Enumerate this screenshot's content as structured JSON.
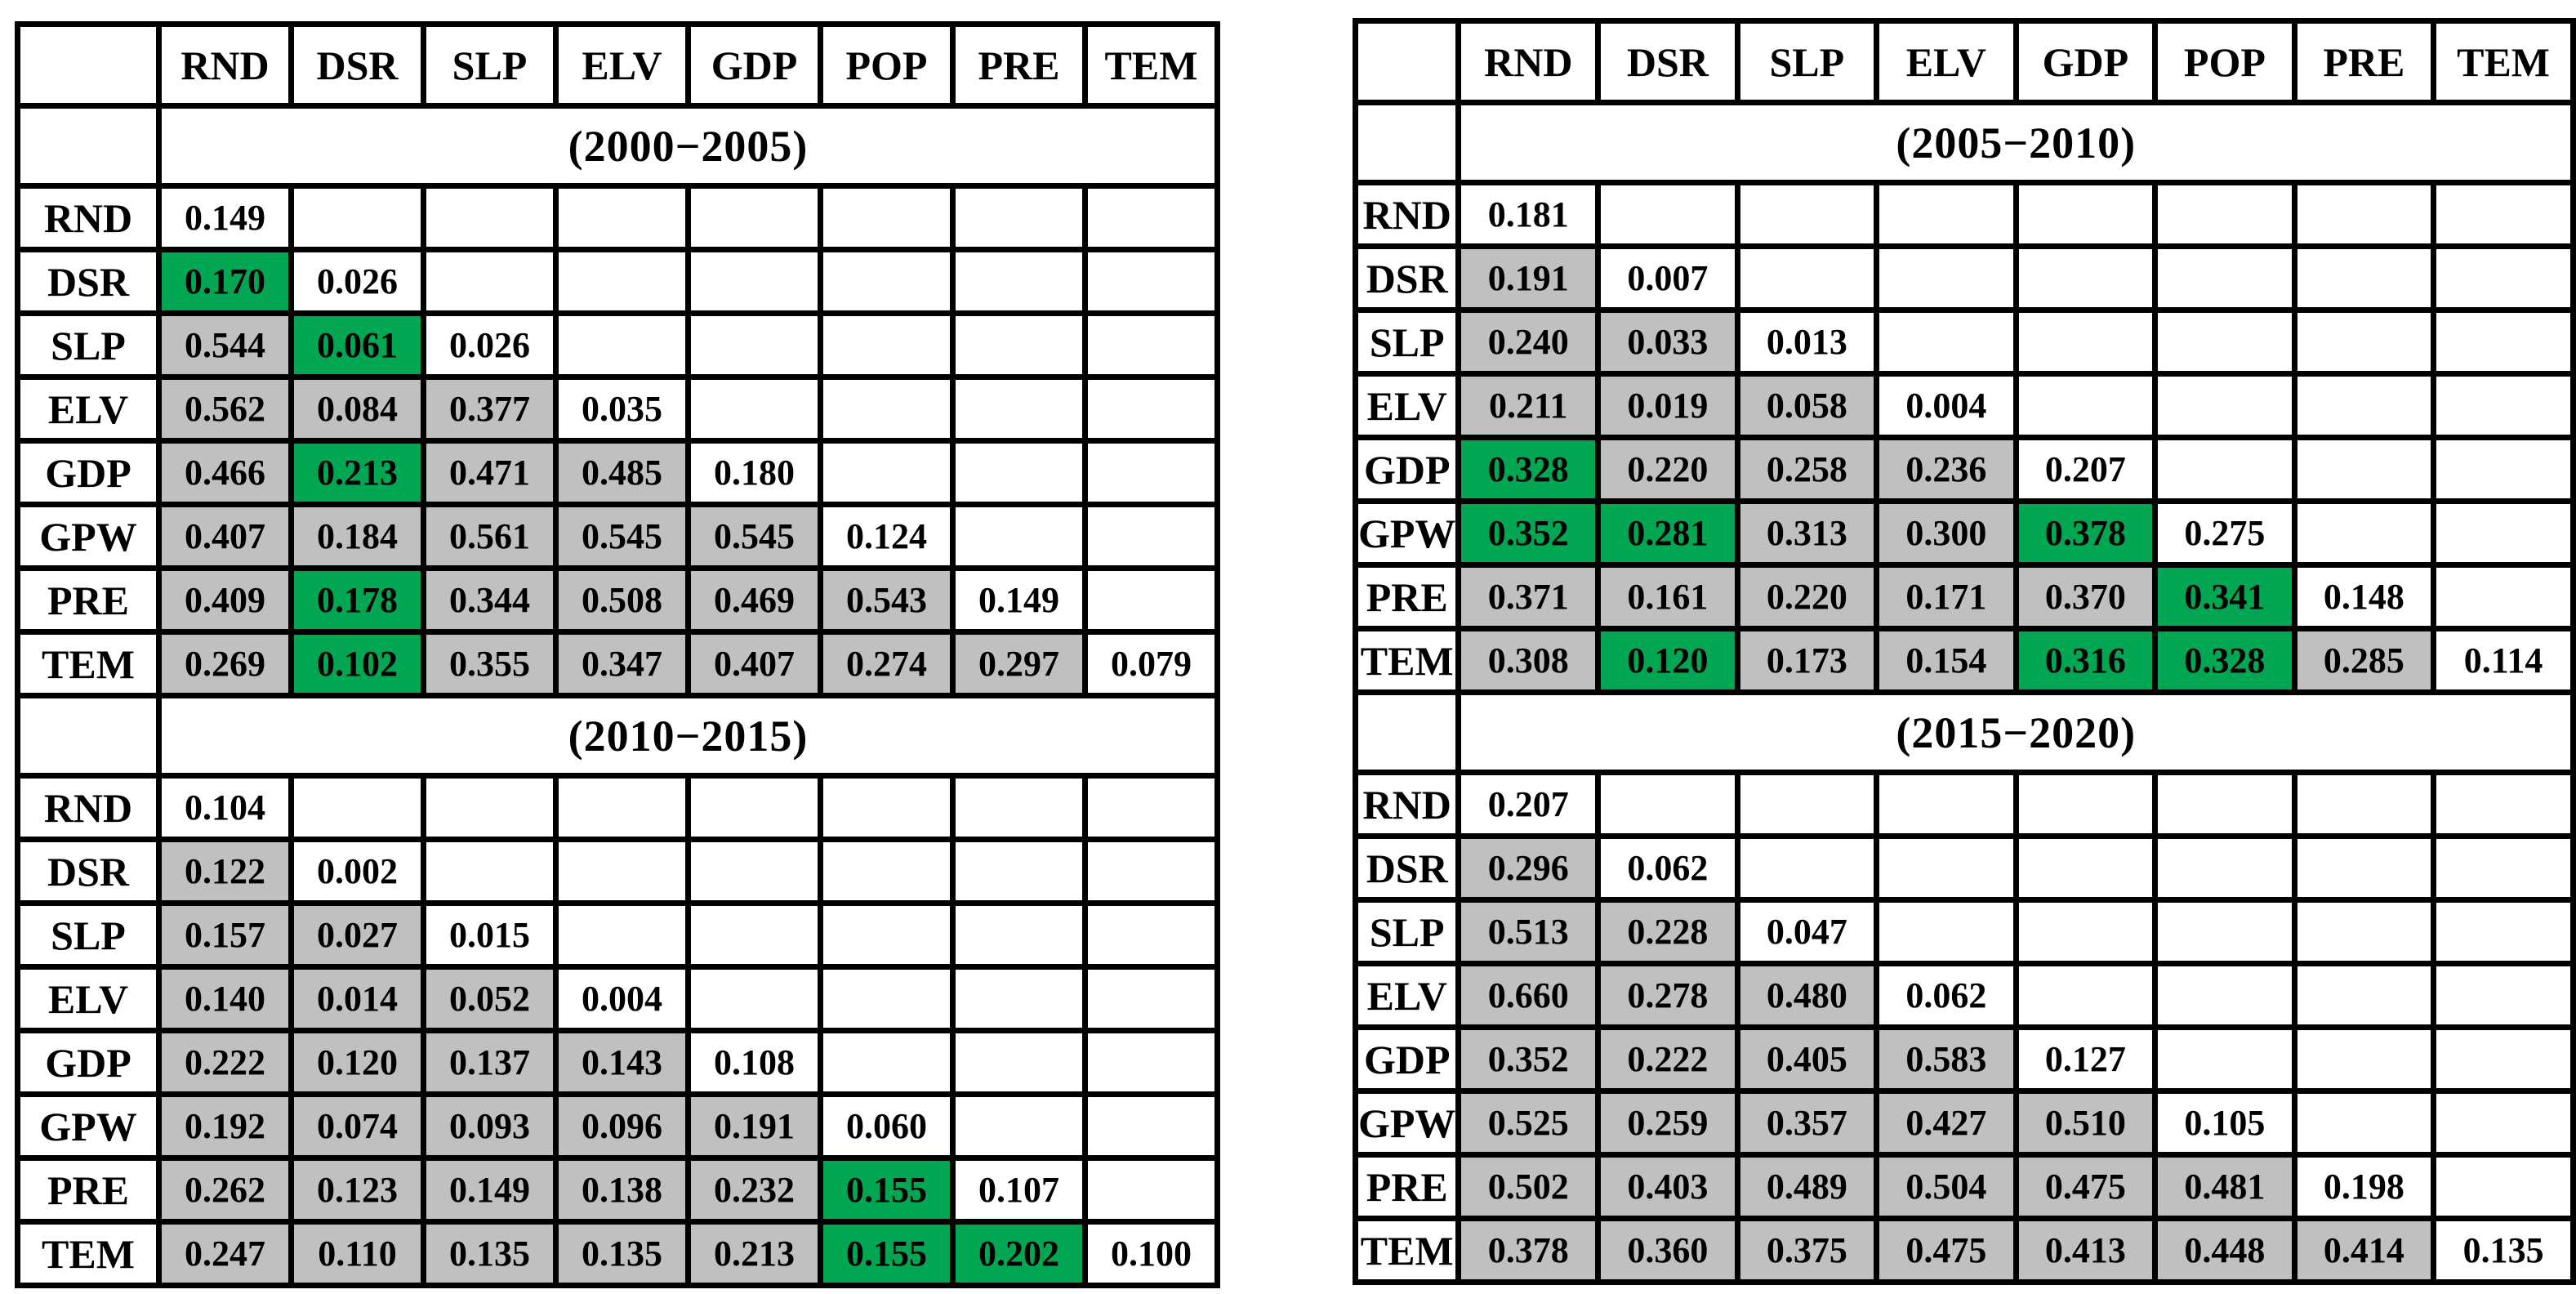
{
  "colors": {
    "cell_gray": "#c0c0c0",
    "cell_green": "#00a651",
    "diagonal_white": "#ffffff",
    "border": "#000000",
    "text": "#000000",
    "background": "#ffffff"
  },
  "chart_data": [
    {
      "type": "table",
      "panel": "left",
      "title": "(2000−2005)",
      "columns": [
        "RND",
        "DSR",
        "SLP",
        "ELV",
        "GDP",
        "POP",
        "PRE",
        "TEM"
      ],
      "row_labels": [
        "RND",
        "DSR",
        "SLP",
        "ELV",
        "GDP",
        "GPW",
        "PRE",
        "TEM"
      ],
      "values": [
        [
          "0.149"
        ],
        [
          "0.170",
          "0.026"
        ],
        [
          "0.544",
          "0.061",
          "0.026"
        ],
        [
          "0.562",
          "0.084",
          "0.377",
          "0.035"
        ],
        [
          "0.466",
          "0.213",
          "0.471",
          "0.485",
          "0.180"
        ],
        [
          "0.407",
          "0.184",
          "0.561",
          "0.545",
          "0.545",
          "0.124"
        ],
        [
          "0.409",
          "0.178",
          "0.344",
          "0.508",
          "0.469",
          "0.543",
          "0.149"
        ],
        [
          "0.269",
          "0.102",
          "0.355",
          "0.347",
          "0.407",
          "0.274",
          "0.297",
          "0.079"
        ]
      ],
      "green_cells": [
        [
          1,
          0
        ],
        [
          2,
          1
        ],
        [
          4,
          1
        ],
        [
          6,
          1
        ],
        [
          7,
          1
        ]
      ]
    },
    {
      "type": "table",
      "panel": "left",
      "title": "(2010−2015)",
      "columns": [
        "RND",
        "DSR",
        "SLP",
        "ELV",
        "GDP",
        "POP",
        "PRE",
        "TEM"
      ],
      "row_labels": [
        "RND",
        "DSR",
        "SLP",
        "ELV",
        "GDP",
        "GPW",
        "PRE",
        "TEM"
      ],
      "values": [
        [
          "0.104"
        ],
        [
          "0.122",
          "0.002"
        ],
        [
          "0.157",
          "0.027",
          "0.015"
        ],
        [
          "0.140",
          "0.014",
          "0.052",
          "0.004"
        ],
        [
          "0.222",
          "0.120",
          "0.137",
          "0.143",
          "0.108"
        ],
        [
          "0.192",
          "0.074",
          "0.093",
          "0.096",
          "0.191",
          "0.060"
        ],
        [
          "0.262",
          "0.123",
          "0.149",
          "0.138",
          "0.232",
          "0.155",
          "0.107"
        ],
        [
          "0.247",
          "0.110",
          "0.135",
          "0.135",
          "0.213",
          "0.155",
          "0.202",
          "0.100"
        ]
      ],
      "green_cells": [
        [
          6,
          5
        ],
        [
          7,
          5
        ],
        [
          7,
          6
        ]
      ]
    },
    {
      "type": "table",
      "panel": "right",
      "title": "(2005−2010)",
      "columns": [
        "RND",
        "DSR",
        "SLP",
        "ELV",
        "GDP",
        "POP",
        "PRE",
        "TEM"
      ],
      "row_labels": [
        "RND",
        "DSR",
        "SLP",
        "ELV",
        "GDP",
        "GPW",
        "PRE",
        "TEM"
      ],
      "values": [
        [
          "0.181"
        ],
        [
          "0.191",
          "0.007"
        ],
        [
          "0.240",
          "0.033",
          "0.013"
        ],
        [
          "0.211",
          "0.019",
          "0.058",
          "0.004"
        ],
        [
          "0.328",
          "0.220",
          "0.258",
          "0.236",
          "0.207"
        ],
        [
          "0.352",
          "0.281",
          "0.313",
          "0.300",
          "0.378",
          "0.275"
        ],
        [
          "0.371",
          "0.161",
          "0.220",
          "0.171",
          "0.370",
          "0.341",
          "0.148"
        ],
        [
          "0.308",
          "0.120",
          "0.173",
          "0.154",
          "0.316",
          "0.328",
          "0.285",
          "0.114"
        ]
      ],
      "green_cells": [
        [
          4,
          0
        ],
        [
          5,
          0
        ],
        [
          5,
          1
        ],
        [
          5,
          4
        ],
        [
          6,
          5
        ],
        [
          7,
          1
        ],
        [
          7,
          4
        ],
        [
          7,
          5
        ]
      ]
    },
    {
      "type": "table",
      "panel": "right",
      "title": "(2015−2020)",
      "columns": [
        "RND",
        "DSR",
        "SLP",
        "ELV",
        "GDP",
        "POP",
        "PRE",
        "TEM"
      ],
      "row_labels": [
        "RND",
        "DSR",
        "SLP",
        "ELV",
        "GDP",
        "GPW",
        "PRE",
        "TEM"
      ],
      "values": [
        [
          "0.207"
        ],
        [
          "0.296",
          "0.062"
        ],
        [
          "0.513",
          "0.228",
          "0.047"
        ],
        [
          "0.660",
          "0.278",
          "0.480",
          "0.062"
        ],
        [
          "0.352",
          "0.222",
          "0.405",
          "0.583",
          "0.127"
        ],
        [
          "0.525",
          "0.259",
          "0.357",
          "0.427",
          "0.510",
          "0.105"
        ],
        [
          "0.502",
          "0.403",
          "0.489",
          "0.504",
          "0.475",
          "0.481",
          "0.198"
        ],
        [
          "0.378",
          "0.360",
          "0.375",
          "0.475",
          "0.413",
          "0.448",
          "0.414",
          "0.135"
        ]
      ],
      "green_cells": []
    }
  ]
}
